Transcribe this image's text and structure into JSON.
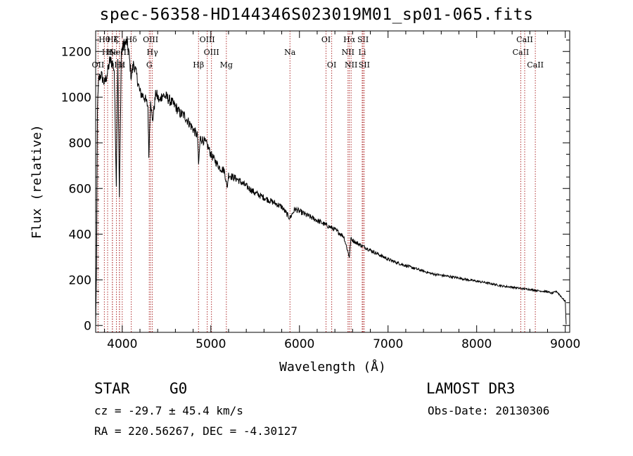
{
  "title": "spec-56358-HD144346S023019M01_sp01-065.fits",
  "info": {
    "class": "STAR",
    "subclass": "G0",
    "survey": "LAMOST DR3",
    "cz": "cz = -29.7 ± 45.4 km/s",
    "obs_date": "Obs-Date: 20130306",
    "coords": "RA = 220.56267, DEC =  -4.30127"
  },
  "chart_data": {
    "type": "line",
    "title": "spec-56358-HD144346S023019M01_sp01-065.fits",
    "xlabel": "Wavelength (Å)",
    "ylabel": "Flux (relative)",
    "xlim": [
      3700,
      9050
    ],
    "ylim": [
      -30,
      1290
    ],
    "xticks": [
      4000,
      5000,
      6000,
      7000,
      8000,
      9000
    ],
    "yticks": [
      0,
      200,
      400,
      600,
      800,
      1000,
      1200
    ],
    "series": [
      {
        "name": "flux",
        "x": [
          3700,
          3710,
          3720,
          3735,
          3760,
          3800,
          3830,
          3860,
          3890,
          3910,
          3933,
          3950,
          3968,
          3990,
          4020,
          4050,
          4070,
          4101,
          4130,
          4170,
          4200,
          4250,
          4290,
          4300,
          4320,
          4340,
          4380,
          4420,
          4450,
          4500,
          4550,
          4600,
          4650,
          4700,
          4750,
          4800,
          4850,
          4861,
          4880,
          4920,
          4960,
          5000,
          5050,
          5100,
          5150,
          5170,
          5183,
          5200,
          5250,
          5300,
          5400,
          5500,
          5600,
          5700,
          5800,
          5890,
          5950,
          6000,
          6100,
          6200,
          6300,
          6400,
          6500,
          6563,
          6580,
          6650,
          6700,
          6800,
          6900,
          7000,
          7100,
          7200,
          7300,
          7400,
          7500,
          7600,
          7700,
          7800,
          7900,
          8000,
          8100,
          8200,
          8300,
          8400,
          8500,
          8600,
          8700,
          8800,
          8850,
          8900,
          8950,
          9000,
          9010
        ],
        "y": [
          0,
          260,
          950,
          1080,
          1100,
          1060,
          1100,
          1160,
          1150,
          1120,
          620,
          1180,
          560,
          1200,
          1230,
          1240,
          1210,
          1090,
          1150,
          1080,
          1020,
          1000,
          960,
          740,
          1000,
          890,
          1020,
          980,
          1010,
          1000,
          980,
          960,
          930,
          920,
          890,
          860,
          830,
          700,
          820,
          810,
          790,
          750,
          720,
          690,
          680,
          640,
          600,
          660,
          650,
          640,
          610,
          580,
          560,
          540,
          520,
          470,
          510,
          500,
          480,
          460,
          440,
          420,
          390,
          300,
          380,
          360,
          350,
          330,
          310,
          290,
          275,
          262,
          250,
          238,
          226,
          220,
          214,
          208,
          200,
          194,
          188,
          180,
          172,
          168,
          162,
          158,
          152,
          148,
          140,
          150,
          128,
          105,
          5
        ]
      }
    ],
    "lines": [
      {
        "name": "OII",
        "x": 3727,
        "row": 2
      },
      {
        "name": "Hθ",
        "x": 3798,
        "row": 0
      },
      {
        "name": "Hη",
        "x": 3835,
        "row": 1
      },
      {
        "name": "Hζ",
        "x": 3889,
        "row": 0
      },
      {
        "name": "He",
        "x": 3889,
        "row": 1
      },
      {
        "name": "K",
        "x": 3934,
        "row": 0
      },
      {
        "name": "Hε",
        "x": 3970,
        "row": 2
      },
      {
        "name": "NeIII",
        "x": 3968,
        "row": 1
      },
      {
        "name": "II",
        "x": 4000,
        "row": 2
      },
      {
        "name": "Hδ",
        "x": 4102,
        "row": 0
      },
      {
        "name": "OIII",
        "x": 4320,
        "row": 0
      },
      {
        "name": "Hγ",
        "x": 4340,
        "row": 1
      },
      {
        "name": "G",
        "x": 4305,
        "row": 2
      },
      {
        "name": "Hβ",
        "x": 4861,
        "row": 2
      },
      {
        "name": "OIII",
        "x": 4959,
        "row": 0
      },
      {
        "name": "OIII",
        "x": 5007,
        "row": 1
      },
      {
        "name": "Mg",
        "x": 5175,
        "row": 2
      },
      {
        "name": "Na",
        "x": 5893,
        "row": 1
      },
      {
        "name": "OI",
        "x": 6300,
        "row": 0
      },
      {
        "name": "OI",
        "x": 6364,
        "row": 2
      },
      {
        "name": "Hα",
        "x": 6563,
        "row": 0
      },
      {
        "name": "NII",
        "x": 6548,
        "row": 1
      },
      {
        "name": "NII",
        "x": 6583,
        "row": 2
      },
      {
        "name": "Li",
        "x": 6708,
        "row": 1
      },
      {
        "name": "SII",
        "x": 6717,
        "row": 0
      },
      {
        "name": "SII",
        "x": 6731,
        "row": 2
      },
      {
        "name": "CaII",
        "x": 8498,
        "row": 1
      },
      {
        "name": "CaII",
        "x": 8542,
        "row": 0
      },
      {
        "name": "CaII",
        "x": 8662,
        "row": 2
      }
    ]
  }
}
